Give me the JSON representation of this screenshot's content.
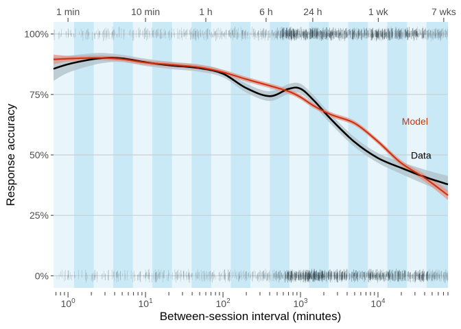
{
  "chart_data": {
    "type": "line",
    "title": "",
    "xlabel": "Between-session interval (minutes)",
    "ylabel": "Response accuracy",
    "x_scale": "log10",
    "xlim": [
      0.65,
      80000
    ],
    "ylim": [
      -0.05,
      1.05
    ],
    "x_ticks": [
      {
        "value": 1,
        "base": "10",
        "exp": "0"
      },
      {
        "value": 10,
        "base": "10",
        "exp": "1"
      },
      {
        "value": 100,
        "base": "10",
        "exp": "2"
      },
      {
        "value": 1000,
        "base": "10",
        "exp": "3"
      },
      {
        "value": 10000,
        "base": "10",
        "exp": "4"
      }
    ],
    "y_ticks": [
      {
        "value": 0,
        "label": "0%"
      },
      {
        "value": 0.25,
        "label": "25%"
      },
      {
        "value": 0.5,
        "label": "50%"
      },
      {
        "value": 0.75,
        "label": "75%"
      },
      {
        "value": 1,
        "label": "100%"
      }
    ],
    "top_axis": [
      {
        "value": 1,
        "label": "1 min"
      },
      {
        "value": 10,
        "label": "10 min"
      },
      {
        "value": 60,
        "label": "1 h"
      },
      {
        "value": 360,
        "label": "6 h"
      },
      {
        "value": 1440,
        "label": "24 h"
      },
      {
        "value": 10080,
        "label": "1 wk"
      },
      {
        "value": 70560,
        "label": "7 wks"
      }
    ],
    "band_edges_log10": [
      0.079,
      0.332,
      0.584,
      0.837,
      1.089,
      1.342,
      1.595,
      1.847,
      2.1,
      2.353,
      2.605,
      2.858,
      3.111,
      3.363,
      3.616,
      3.869,
      4.121,
      4.374,
      4.626,
      4.903
    ],
    "series": [
      {
        "name": "Data",
        "color": "#000000",
        "points": [
          [
            0.65,
            0.856
          ],
          [
            1,
            0.875
          ],
          [
            2,
            0.895
          ],
          [
            3,
            0.901
          ],
          [
            5,
            0.899
          ],
          [
            10,
            0.883
          ],
          [
            20,
            0.871
          ],
          [
            50,
            0.859
          ],
          [
            100,
            0.836
          ],
          [
            200,
            0.776
          ],
          [
            400,
            0.743
          ],
          [
            700,
            0.773
          ],
          [
            1000,
            0.774
          ],
          [
            1500,
            0.724
          ],
          [
            2500,
            0.646
          ],
          [
            5000,
            0.553
          ],
          [
            10000,
            0.487
          ],
          [
            20000,
            0.446
          ],
          [
            40000,
            0.409
          ],
          [
            80000,
            0.378
          ]
        ],
        "band": {
          "color": "#aebfc6",
          "half_width": [
            0.05,
            0.035,
            0.025,
            0.02,
            0.015,
            0.015,
            0.015,
            0.015,
            0.015,
            0.018,
            0.02,
            0.02,
            0.02,
            0.02,
            0.02,
            0.02,
            0.02,
            0.025,
            0.03,
            0.035
          ]
        }
      },
      {
        "name": "Model",
        "color": "#cc3311",
        "points": [
          [
            0.65,
            0.895
          ],
          [
            1,
            0.898
          ],
          [
            2,
            0.901
          ],
          [
            3,
            0.901
          ],
          [
            5,
            0.896
          ],
          [
            10,
            0.882
          ],
          [
            20,
            0.874
          ],
          [
            50,
            0.862
          ],
          [
            100,
            0.842
          ],
          [
            200,
            0.813
          ],
          [
            400,
            0.786
          ],
          [
            700,
            0.763
          ],
          [
            1000,
            0.739
          ],
          [
            1500,
            0.702
          ],
          [
            2500,
            0.666
          ],
          [
            5000,
            0.631
          ],
          [
            10000,
            0.555
          ],
          [
            20000,
            0.466
          ],
          [
            40000,
            0.405
          ],
          [
            80000,
            0.333
          ]
        ],
        "band": {
          "color": "#e3968b",
          "half_width": [
            0.02,
            0.012,
            0.01,
            0.01,
            0.01,
            0.01,
            0.01,
            0.01,
            0.01,
            0.01,
            0.01,
            0.01,
            0.01,
            0.01,
            0.01,
            0.01,
            0.01,
            0.012,
            0.015,
            0.02
          ]
        }
      }
    ],
    "annotations": [
      {
        "text": "Model",
        "x": 30000,
        "y": 0.635,
        "color": "#cc3311"
      },
      {
        "text": "Data",
        "x": 36000,
        "y": 0.495,
        "color": "#000000"
      }
    ],
    "rug": {
      "top_y": 1.0,
      "bottom_y": 0.0
    }
  }
}
